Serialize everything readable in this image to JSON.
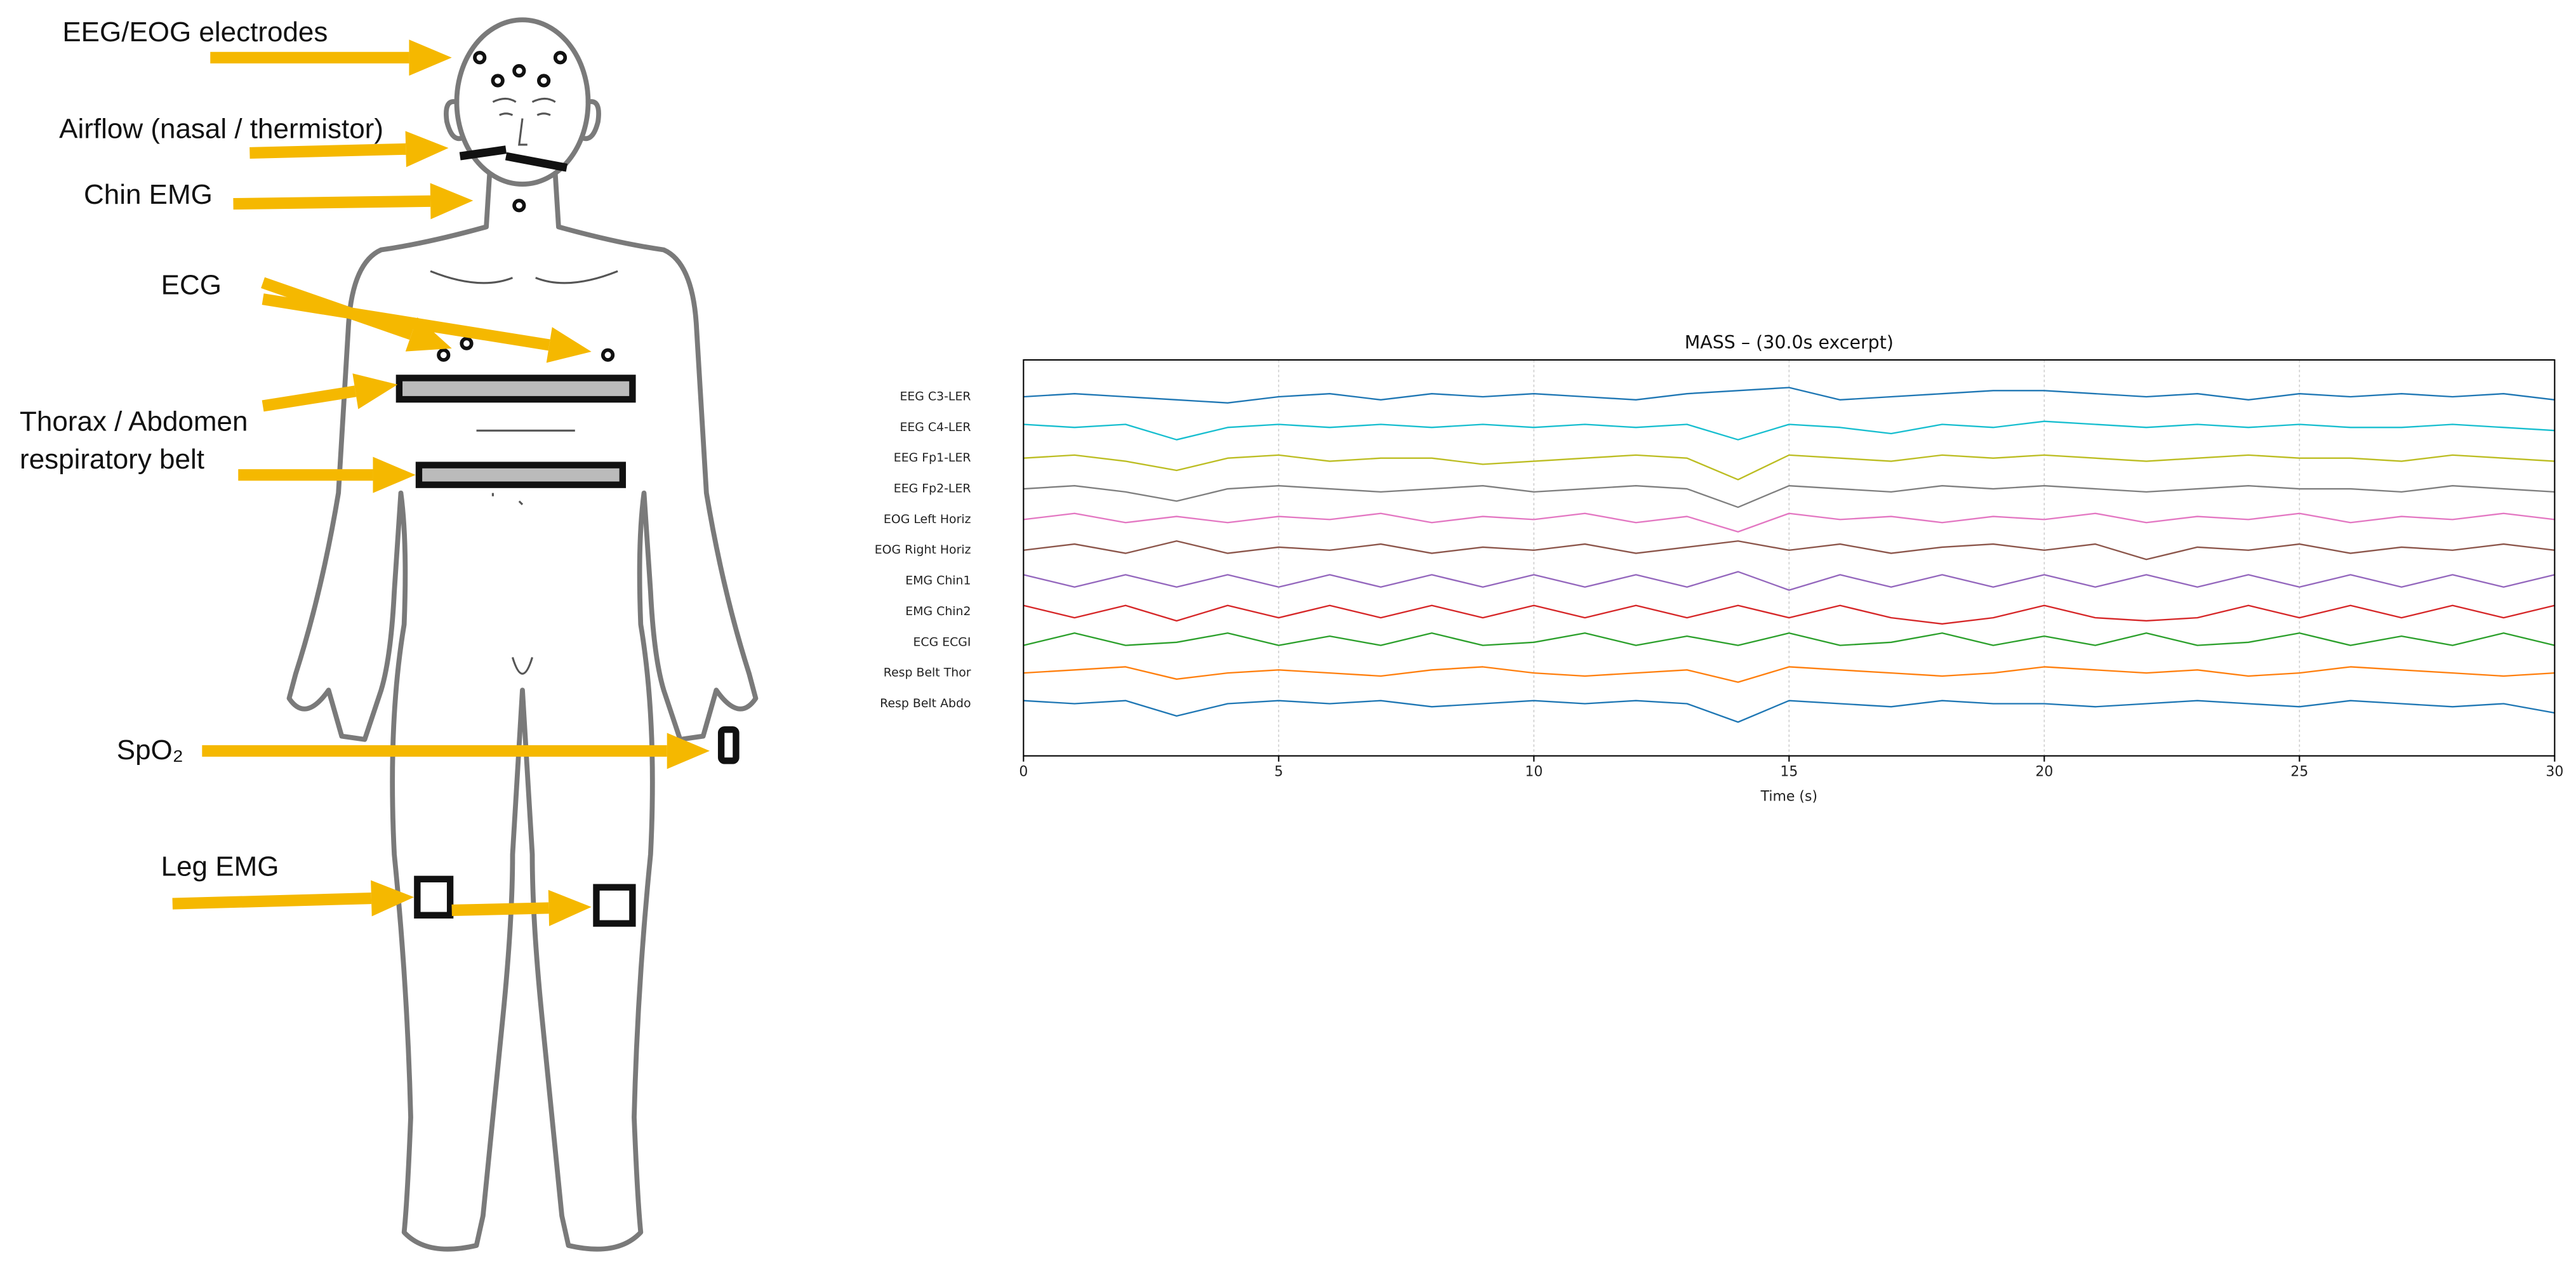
{
  "diagram": {
    "labels": {
      "eeg": "EEG/EOG electrodes",
      "airflow": "Airflow (nasal / thermistor)",
      "chin": "Chin EMG",
      "ecg": "ECG",
      "belt1": "Thorax / Abdomen",
      "belt2": "respiratory belt",
      "spo2": "SpO₂",
      "leg": "Leg EMG"
    }
  },
  "chart_data": {
    "type": "line",
    "title": "MASS – (30.0s excerpt)",
    "x_label": "Time (s)",
    "xlim": [
      0,
      30
    ],
    "xticks": [
      0,
      5,
      10,
      15,
      20,
      25,
      30
    ],
    "grid": true,
    "ylim": [
      -1.7,
      11.2
    ],
    "yticks": [
      {
        "value": 10,
        "label": "EEG C3-LER"
      },
      {
        "value": 9,
        "label": "EEG C4-LER"
      },
      {
        "value": 8,
        "label": "EEG Fp1-LER"
      },
      {
        "value": 7,
        "label": "EEG Fp2-LER"
      },
      {
        "value": 6,
        "label": "EOG Left Horiz"
      },
      {
        "value": 5,
        "label": "EOG Right Horiz"
      },
      {
        "value": 4,
        "label": "EMG Chin1"
      },
      {
        "value": 3,
        "label": "EMG Chin2"
      },
      {
        "value": 2,
        "label": "ECG ECGI"
      },
      {
        "value": 1,
        "label": "Resp Belt Thor"
      },
      {
        "value": 0,
        "label": "Resp Belt Abdo"
      }
    ],
    "x": [
      0,
      1,
      2,
      3,
      4,
      5,
      6,
      7,
      8,
      9,
      10,
      11,
      12,
      13,
      14,
      15,
      16,
      17,
      18,
      19,
      20,
      21,
      22,
      23,
      24,
      25,
      26,
      27,
      28,
      29,
      30
    ],
    "series": [
      {
        "color": "#1f77b4",
        "values": [
          10.0,
          10.1,
          10.0,
          9.9,
          9.8,
          10.0,
          10.1,
          9.9,
          10.1,
          10.0,
          10.1,
          10.0,
          9.9,
          10.1,
          10.2,
          10.3,
          9.9,
          10.0,
          10.1,
          10.2,
          10.2,
          10.1,
          10.0,
          10.1,
          9.9,
          10.1,
          10.0,
          10.1,
          10.0,
          10.1,
          9.9
        ]
      },
      {
        "color": "#17becf",
        "values": [
          9.1,
          9.0,
          9.1,
          8.6,
          9.0,
          9.1,
          9.0,
          9.1,
          9.0,
          9.1,
          9.0,
          9.1,
          9.0,
          9.1,
          8.6,
          9.1,
          9.0,
          8.8,
          9.1,
          9.0,
          9.2,
          9.1,
          9.0,
          9.1,
          9.0,
          9.1,
          9.0,
          9.0,
          9.1,
          9.0,
          8.9
        ]
      },
      {
        "color": "#bcbd22",
        "values": [
          8.0,
          8.1,
          7.9,
          7.6,
          8.0,
          8.1,
          7.9,
          8.0,
          8.0,
          7.8,
          7.9,
          8.0,
          8.1,
          8.0,
          7.3,
          8.1,
          8.0,
          7.9,
          8.1,
          8.0,
          8.1,
          8.0,
          7.9,
          8.0,
          8.1,
          8.0,
          8.0,
          7.9,
          8.1,
          8.0,
          7.9
        ]
      },
      {
        "color": "#7f7f7f",
        "values": [
          7.0,
          7.1,
          6.9,
          6.6,
          7.0,
          7.1,
          7.0,
          6.9,
          7.0,
          7.1,
          6.9,
          7.0,
          7.1,
          7.0,
          6.4,
          7.1,
          7.0,
          6.9,
          7.1,
          7.0,
          7.1,
          7.0,
          6.9,
          7.0,
          7.1,
          7.0,
          7.0,
          6.9,
          7.1,
          7.0,
          6.9
        ]
      },
      {
        "color": "#e377c2",
        "values": [
          6.0,
          6.2,
          5.9,
          6.1,
          5.9,
          6.1,
          6.0,
          6.2,
          5.9,
          6.1,
          6.0,
          6.2,
          5.9,
          6.1,
          5.6,
          6.2,
          6.0,
          6.1,
          5.9,
          6.1,
          6.0,
          6.2,
          5.9,
          6.1,
          6.0,
          6.2,
          5.9,
          6.1,
          6.0,
          6.2,
          6.0
        ]
      },
      {
        "color": "#8c564b",
        "values": [
          5.0,
          5.2,
          4.9,
          5.3,
          4.9,
          5.1,
          5.0,
          5.2,
          4.9,
          5.1,
          5.0,
          5.2,
          4.9,
          5.1,
          5.3,
          5.0,
          5.2,
          4.9,
          5.1,
          5.2,
          5.0,
          5.2,
          4.7,
          5.1,
          5.0,
          5.2,
          4.9,
          5.1,
          5.0,
          5.2,
          5.0
        ]
      },
      {
        "color": "#9467bd",
        "values": [
          4.2,
          3.8,
          4.2,
          3.8,
          4.2,
          3.8,
          4.2,
          3.8,
          4.2,
          3.8,
          4.2,
          3.8,
          4.2,
          3.8,
          4.3,
          3.7,
          4.2,
          3.8,
          4.2,
          3.8,
          4.2,
          3.8,
          4.2,
          3.8,
          4.2,
          3.8,
          4.2,
          3.8,
          4.2,
          3.8,
          4.2
        ]
      },
      {
        "color": "#d62728",
        "values": [
          3.2,
          2.8,
          3.2,
          2.7,
          3.2,
          2.8,
          3.2,
          2.8,
          3.2,
          2.8,
          3.2,
          2.8,
          3.2,
          2.8,
          3.2,
          2.8,
          3.2,
          2.8,
          2.6,
          2.8,
          3.2,
          2.8,
          2.7,
          2.8,
          3.2,
          2.8,
          3.2,
          2.8,
          3.2,
          2.8,
          3.2
        ]
      },
      {
        "color": "#2ca02c",
        "values": [
          1.9,
          2.3,
          1.9,
          2.0,
          2.3,
          1.9,
          2.2,
          1.9,
          2.3,
          1.9,
          2.0,
          2.3,
          1.9,
          2.2,
          1.9,
          2.3,
          1.9,
          2.0,
          2.3,
          1.9,
          2.2,
          1.9,
          2.3,
          1.9,
          2.0,
          2.3,
          1.9,
          2.2,
          1.9,
          2.3,
          1.9
        ]
      },
      {
        "color": "#ff7f0e",
        "values": [
          1.0,
          1.1,
          1.2,
          0.8,
          1.0,
          1.1,
          1.0,
          0.9,
          1.1,
          1.2,
          1.0,
          0.9,
          1.0,
          1.1,
          0.7,
          1.2,
          1.1,
          1.0,
          0.9,
          1.0,
          1.2,
          1.1,
          1.0,
          1.1,
          0.9,
          1.0,
          1.2,
          1.1,
          1.0,
          0.9,
          1.0
        ]
      },
      {
        "color": "#1f77b4",
        "values": [
          0.1,
          0.0,
          0.1,
          -0.4,
          0.0,
          0.1,
          0.0,
          0.1,
          -0.1,
          0.0,
          0.1,
          0.0,
          0.1,
          0.0,
          -0.6,
          0.1,
          0.0,
          -0.1,
          0.1,
          0.0,
          0.0,
          -0.1,
          0.0,
          0.1,
          0.0,
          -0.1,
          0.1,
          0.0,
          -0.1,
          0.0,
          -0.3
        ]
      }
    ]
  }
}
